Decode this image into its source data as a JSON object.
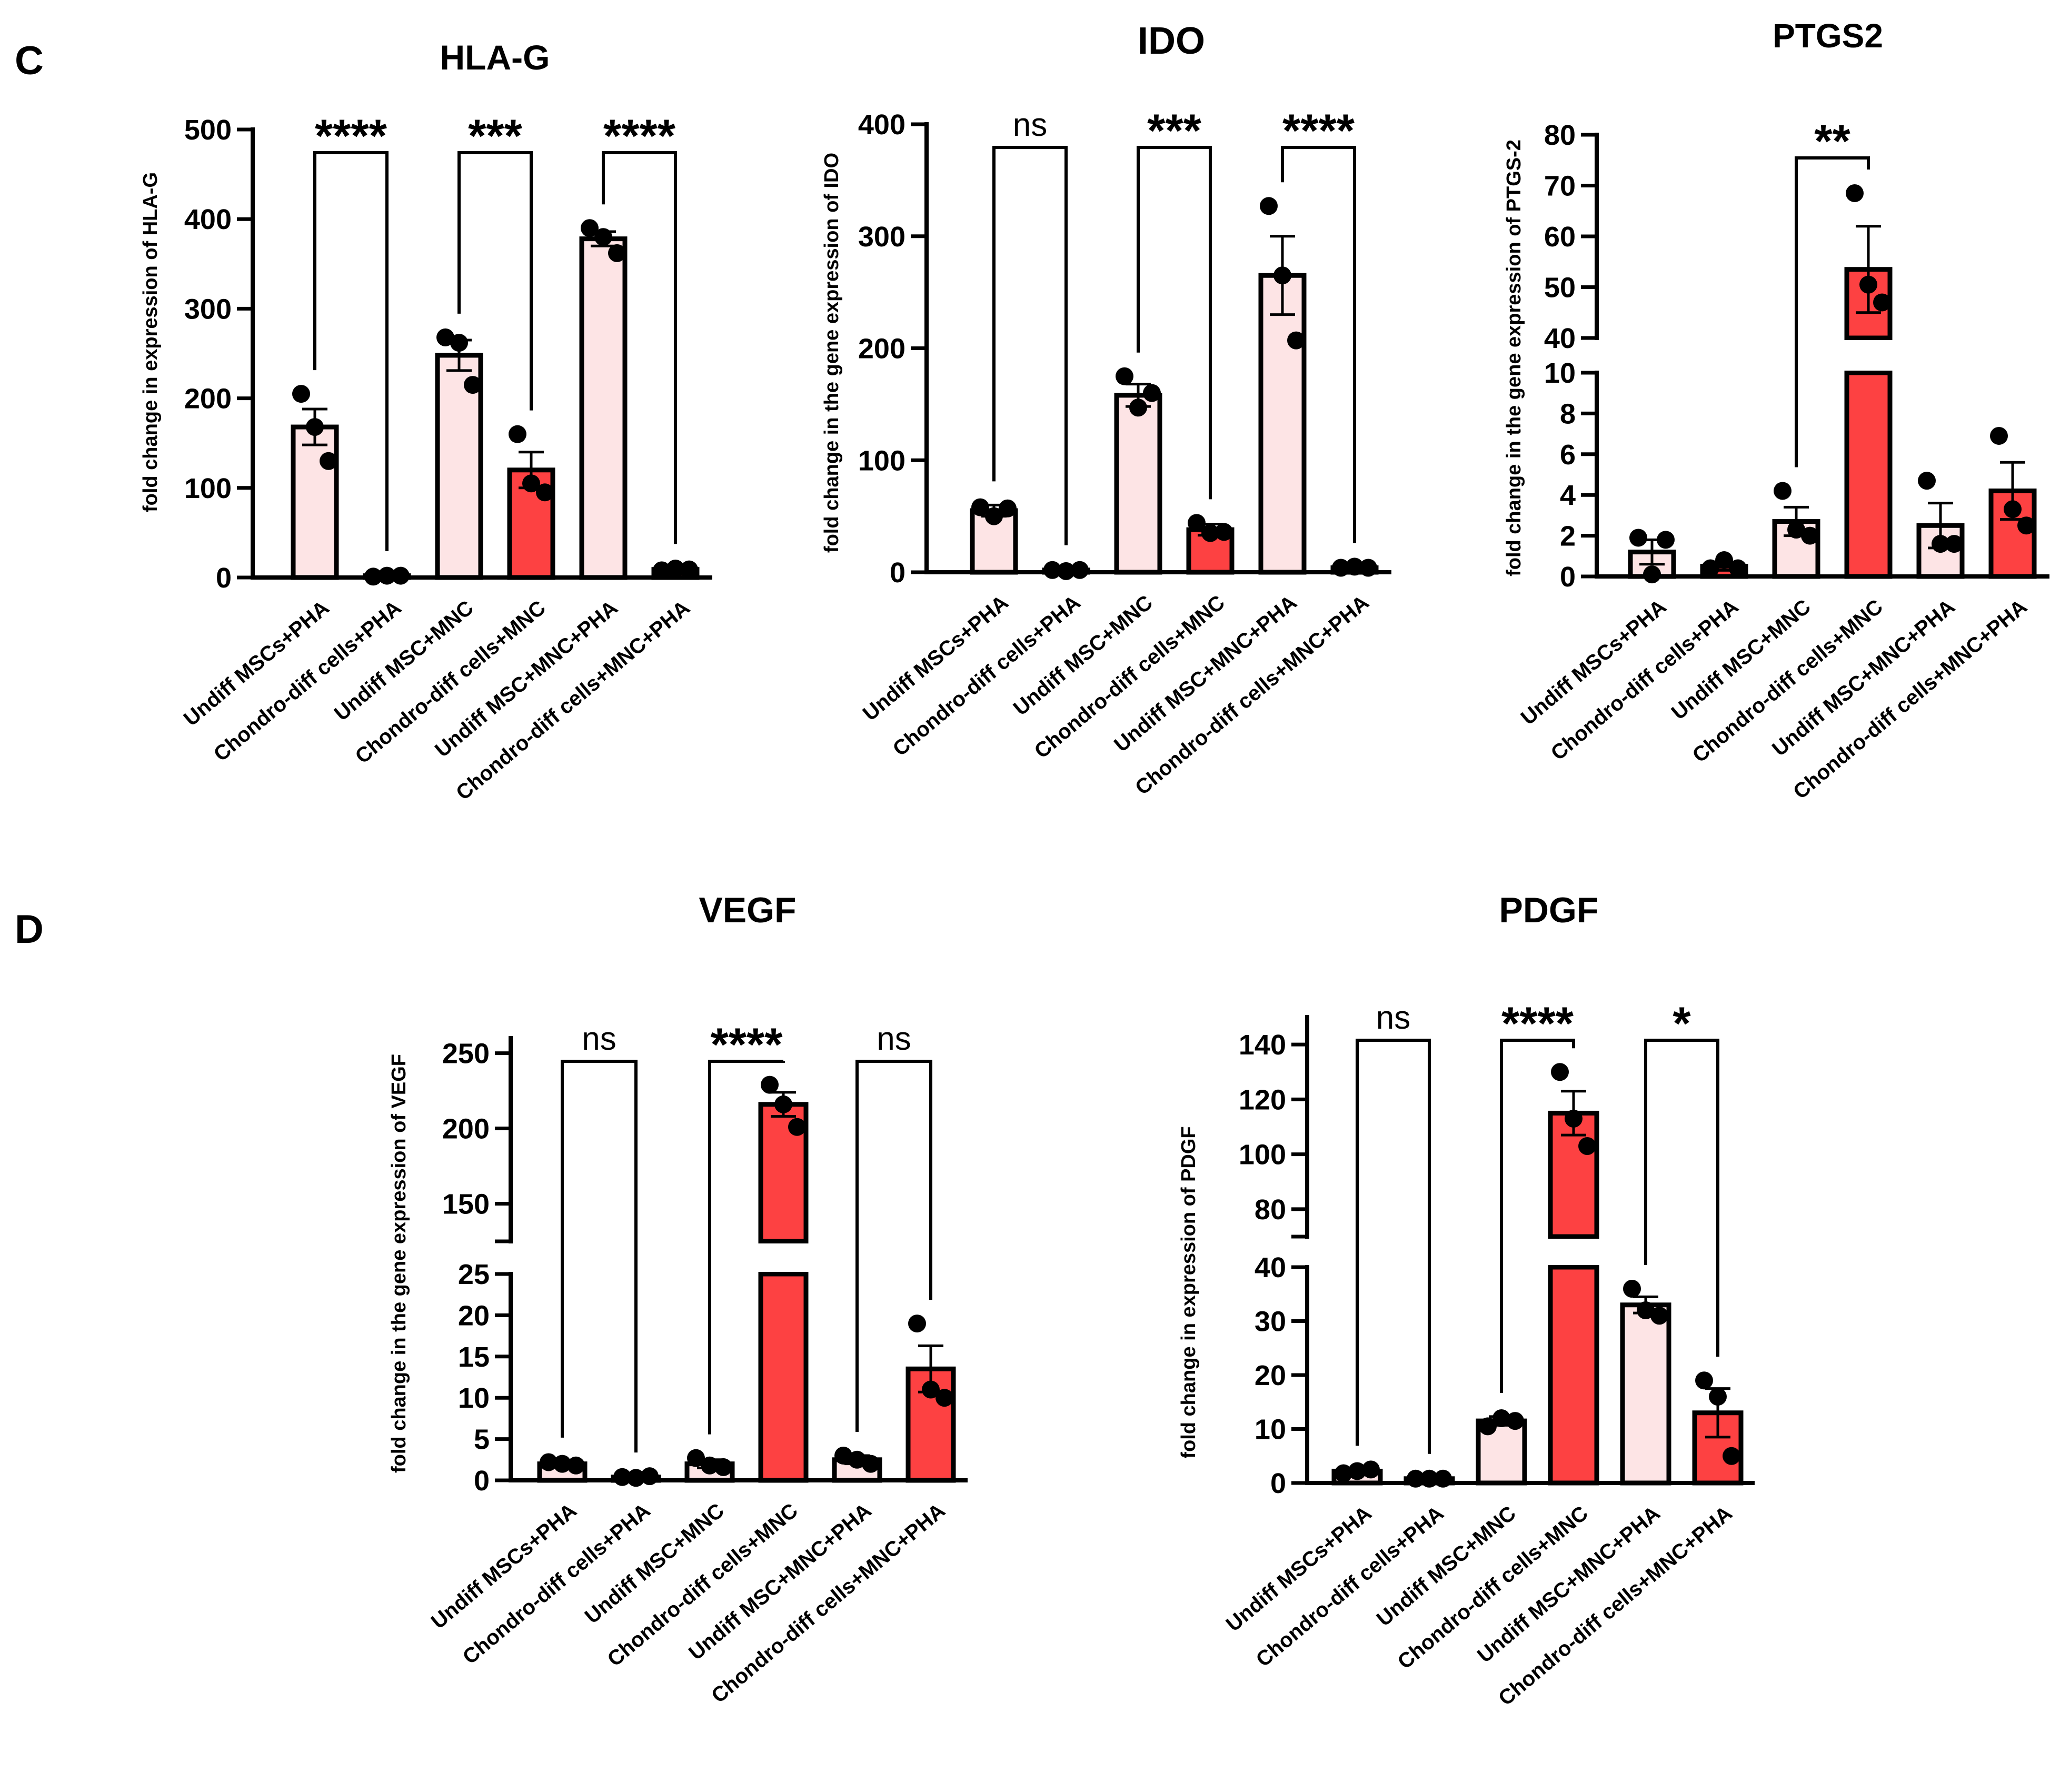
{
  "panels": [
    {
      "label": "C"
    },
    {
      "label": "D"
    }
  ],
  "colors": {
    "light_pink": "#fde4e5",
    "red": "#fd4142",
    "ink": "#000000"
  },
  "chart_data": [
    {
      "type": "bar",
      "title": "HLA-G",
      "ylabel": "fold change in expression of HLA-G",
      "ylim": [
        0,
        500
      ],
      "yticks": [
        0,
        100,
        200,
        300,
        400,
        500
      ],
      "categories": [
        "Undiff MSCs+PHA",
        "Chondro-diff cells+PHA",
        "Undiff MSC+MNC",
        "Chondro-diff cells+MNC",
        "Undiff MSC+MNC+PHA",
        "Chondro-diff cells+MNC+PHA"
      ],
      "values": [
        168,
        2,
        248,
        120,
        378,
        9
      ],
      "errors": [
        20,
        1,
        17,
        20,
        8,
        2
      ],
      "bar_colors": [
        "light_pink",
        "red",
        "light_pink",
        "red",
        "light_pink",
        "red"
      ],
      "points": [
        [
          205,
          168,
          130
        ],
        [
          1,
          2,
          2
        ],
        [
          268,
          262,
          215
        ],
        [
          160,
          105,
          95
        ],
        [
          390,
          380,
          362
        ],
        [
          8,
          10,
          9
        ]
      ],
      "comparisons": [
        {
          "from": 0,
          "to": 1,
          "label": "****"
        },
        {
          "from": 2,
          "to": 3,
          "label": "***"
        },
        {
          "from": 4,
          "to": 5,
          "label": "****"
        }
      ]
    },
    {
      "type": "bar",
      "title": "IDO",
      "ylabel": "fold change in the gene expression of IDO",
      "ylim": [
        0,
        400
      ],
      "yticks": [
        0,
        100,
        200,
        300,
        400
      ],
      "categories": [
        "Undiff MSCs+PHA",
        "Chondro-diff cells+PHA",
        "Undiff MSC+MNC",
        "Chondro-diff cells+MNC",
        "Undiff MSC+MNC+PHA",
        "Chondro-diff cells+MNC+PHA"
      ],
      "values": [
        55,
        2,
        158,
        38,
        265,
        4
      ],
      "errors": [
        5,
        1,
        10,
        5,
        35,
        1
      ],
      "bar_colors": [
        "light_pink",
        "red",
        "light_pink",
        "red",
        "light_pink",
        "red"
      ],
      "points": [
        [
          58,
          50,
          57
        ],
        [
          2,
          1,
          2
        ],
        [
          175,
          147,
          160
        ],
        [
          44,
          35,
          36
        ],
        [
          327,
          265,
          207
        ],
        [
          4,
          5,
          4
        ]
      ],
      "comparisons": [
        {
          "from": 0,
          "to": 1,
          "label": "ns"
        },
        {
          "from": 2,
          "to": 3,
          "label": "***"
        },
        {
          "from": 4,
          "to": 5,
          "label": "****"
        }
      ]
    },
    {
      "type": "bar",
      "title": "PTGS2",
      "ylabel": "fold change in the gene expression of PTGS-2",
      "broken_axis": true,
      "ylim_lower": [
        0,
        10
      ],
      "ylim_upper": [
        40,
        80
      ],
      "yticks_lower": [
        0,
        2,
        4,
        6,
        8,
        10
      ],
      "yticks_upper": [
        40,
        50,
        60,
        70,
        80
      ],
      "categories": [
        "Undiff MSCs+PHA",
        "Chondro-diff cells+PHA",
        "Undiff MSC+MNC",
        "Chondro-diff cells+MNC",
        "Undiff MSC+MNC+PHA",
        "Chondro-diff cells+MNC+PHA"
      ],
      "values": [
        1.2,
        0.5,
        2.7,
        53.5,
        2.5,
        4.2
      ],
      "errors": [
        0.6,
        0.2,
        0.7,
        8.5,
        1.1,
        1.4
      ],
      "bar_colors": [
        "light_pink",
        "red",
        "light_pink",
        "red",
        "light_pink",
        "red"
      ],
      "points": [
        [
          1.9,
          0.1,
          1.8
        ],
        [
          0.4,
          0.8,
          0.4
        ],
        [
          4.2,
          2.3,
          2.0
        ],
        [
          68.5,
          50.5,
          47
        ],
        [
          4.7,
          1.6,
          1.6
        ],
        [
          6.9,
          3.3,
          2.5
        ]
      ],
      "comparisons": [
        {
          "from": 2,
          "to": 3,
          "label": "**"
        }
      ]
    },
    {
      "type": "bar",
      "title": "VEGF",
      "ylabel": "fold change in the gene expression of VEGF",
      "broken_axis": true,
      "ylim_lower": [
        0,
        25
      ],
      "ylim_upper": [
        125,
        260
      ],
      "yticks_lower": [
        0,
        5,
        10,
        15,
        20,
        25
      ],
      "yticks_upper": [
        150,
        200,
        250
      ],
      "categories": [
        "Undiff MSCs+PHA",
        "Chondro-diff cells+PHA",
        "Undiff MSC+MNC",
        "Chondro-diff cells+MNC",
        "Undiff MSC+MNC+PHA",
        "Chondro-diff cells+MNC+PHA"
      ],
      "values": [
        2.0,
        0.4,
        2.0,
        216,
        2.5,
        13.5
      ],
      "errors": [
        0.3,
        0.1,
        0.5,
        8,
        0.5,
        2.8
      ],
      "bar_colors": [
        "light_pink",
        "red",
        "light_pink",
        "red",
        "light_pink",
        "red"
      ],
      "points": [
        [
          2.2,
          2.0,
          1.8
        ],
        [
          0.4,
          0.3,
          0.5
        ],
        [
          2.7,
          1.8,
          1.6
        ],
        [
          229,
          216,
          201
        ],
        [
          3.0,
          2.5,
          2.0
        ],
        [
          19,
          11,
          10
        ]
      ],
      "comparisons": [
        {
          "from": 0,
          "to": 1,
          "label": "ns"
        },
        {
          "from": 2,
          "to": 3,
          "label": "****"
        },
        {
          "from": 4,
          "to": 5,
          "label": "ns"
        }
      ]
    },
    {
      "type": "bar",
      "title": "PDGF",
      "ylabel": "fold change in expression of PDGF",
      "broken_axis": true,
      "ylim_lower": [
        0,
        40
      ],
      "ylim_upper": [
        70,
        150
      ],
      "yticks_lower": [
        0,
        10,
        20,
        30,
        40
      ],
      "yticks_upper": [
        80,
        100,
        120,
        140
      ],
      "categories": [
        "Undiff MSCs+PHA",
        "Chondro-diff cells+PHA",
        "Undiff MSC+MNC",
        "Chondro-diff cells+MNC",
        "Undiff MSC+MNC+PHA",
        "Chondro-diff cells+MNC+PHA"
      ],
      "values": [
        2.2,
        0.8,
        11.5,
        115,
        33,
        13
      ],
      "errors": [
        0.3,
        0.2,
        0.8,
        8,
        1.5,
        4.5
      ],
      "bar_colors": [
        "light_pink",
        "red",
        "light_pink",
        "red",
        "light_pink",
        "red"
      ],
      "points": [
        [
          1.8,
          2.2,
          2.5
        ],
        [
          0.8,
          0.8,
          0.8
        ],
        [
          10.5,
          12.0,
          11.5
        ],
        [
          130,
          113,
          103
        ],
        [
          36,
          32,
          31
        ],
        [
          19,
          16,
          5
        ]
      ],
      "comparisons": [
        {
          "from": 0,
          "to": 1,
          "label": "ns"
        },
        {
          "from": 2,
          "to": 3,
          "label": "****"
        },
        {
          "from": 4,
          "to": 5,
          "label": "*"
        }
      ]
    }
  ]
}
